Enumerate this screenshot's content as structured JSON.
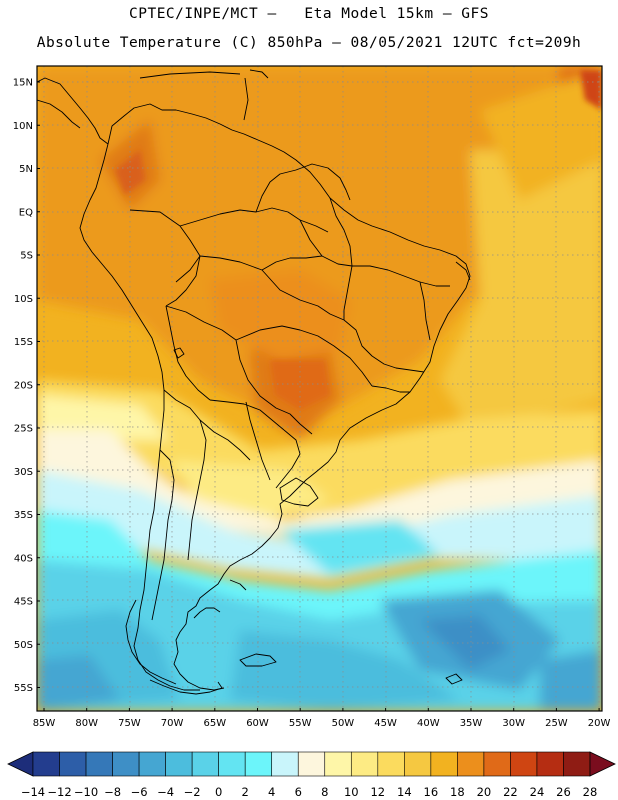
{
  "header": {
    "line1": "CPTEC/INPE/MCT –   Eta Model 15km – GFS",
    "line2": "Absolute Temperature (C) 850hPa – 08/05/2021 12UTC fct=209h"
  },
  "axes": {
    "lat_labels": [
      "15N",
      "10N",
      "5N",
      "EQ",
      "5S",
      "10S",
      "15S",
      "20S",
      "25S",
      "30S",
      "35S",
      "40S",
      "45S",
      "50S",
      "55S"
    ],
    "lon_labels": [
      "85W",
      "80W",
      "75W",
      "70W",
      "65W",
      "60W",
      "55W",
      "50W",
      "45W",
      "40W",
      "35W",
      "30W",
      "25W",
      "20W"
    ]
  },
  "colorbar": {
    "labels": [
      "-14",
      "-12",
      "-10",
      "-8",
      "-6",
      "-4",
      "-2",
      "0",
      "2",
      "4",
      "6",
      "8",
      "10",
      "12",
      "14",
      "16",
      "18",
      "20",
      "22",
      "24",
      "26",
      "28"
    ],
    "under_color": "#1d2d7a",
    "over_color": "#7a0d1e",
    "colors": [
      "#233d8e",
      "#2d5ea8",
      "#3578b8",
      "#3e8fc6",
      "#45a6d2",
      "#4cbddd",
      "#5ad2e8",
      "#63e4f2",
      "#6cf5fa",
      "#c9f5fb",
      "#fdf6dd",
      "#fef6a8",
      "#fdeb84",
      "#fbdb5e",
      "#f5c841",
      "#f2b220",
      "#ec8f1c",
      "#e06a18",
      "#cf4512",
      "#b52d12",
      "#8f1c14"
    ]
  },
  "map_colors": {
    "ocean_grid": "#9aa0a6",
    "coast": "#000000"
  }
}
